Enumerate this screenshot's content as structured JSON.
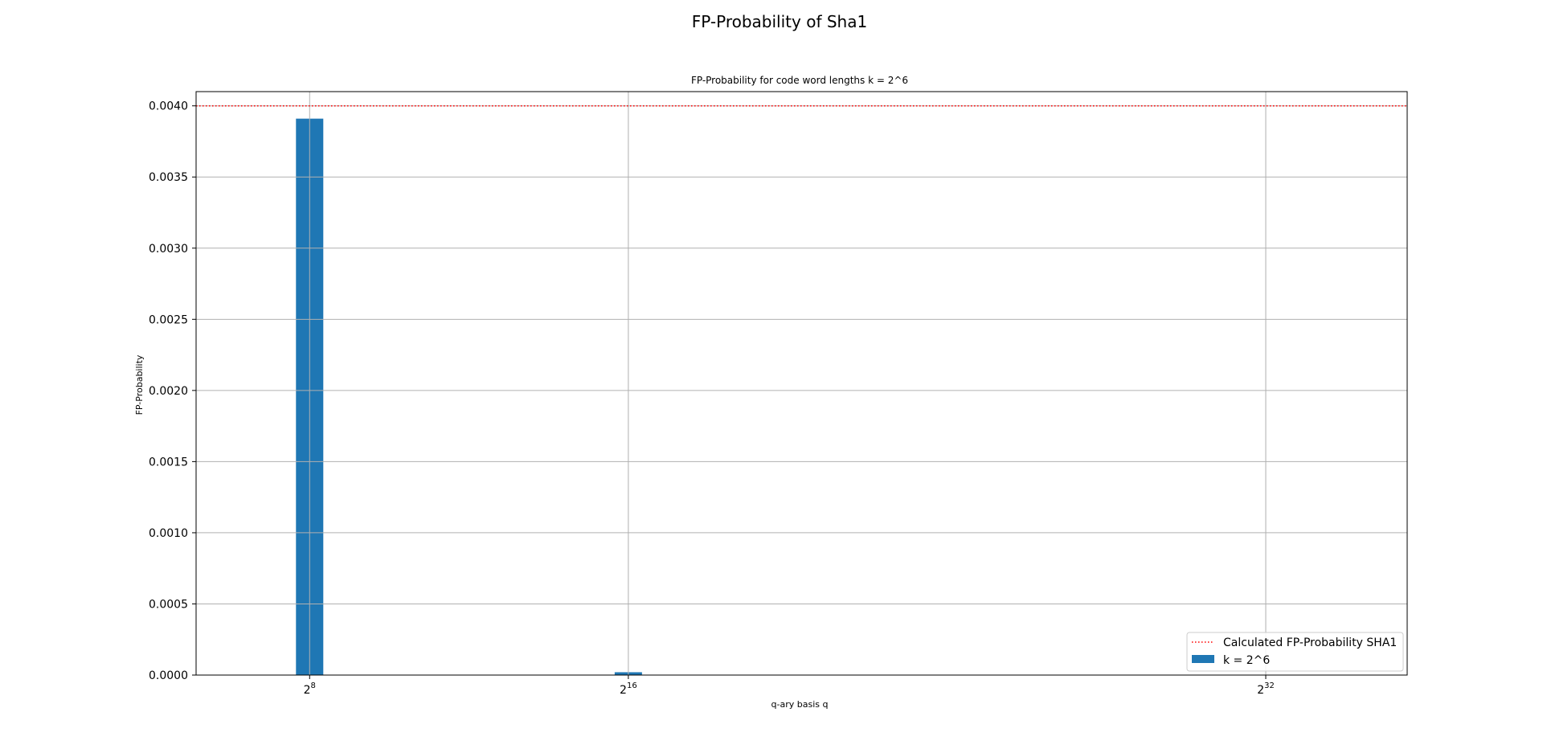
{
  "figure": {
    "suptitle": "FP-Probability of Sha1"
  },
  "chart_data": {
    "type": "bar",
    "title": "FP-Probability for code word lengths k = 2^6",
    "xlabel": "q-ary basis q",
    "ylabel": "FP-Probability",
    "x_scale": "log2",
    "x_ticks": [
      {
        "base": "2",
        "exp": "8",
        "value_log2": 8
      },
      {
        "base": "2",
        "exp": "16",
        "value_log2": 16
      },
      {
        "base": "2",
        "exp": "32",
        "value_log2": 32
      }
    ],
    "y_ticks": [
      "0.0000",
      "0.0005",
      "0.0010",
      "0.0015",
      "0.0020",
      "0.0025",
      "0.0030",
      "0.0035",
      "0.0040"
    ],
    "ylim": [
      0,
      0.0041
    ],
    "xlim_log2": [
      5.15,
      35.55
    ],
    "grid": true,
    "series": [
      {
        "name": "k = 2^6",
        "color": "#1f77b4",
        "x_log2": [
          8,
          16,
          32
        ],
        "values": [
          0.00391,
          2e-05,
          0.0
        ]
      }
    ],
    "reference_line": {
      "name": "Calculated FP-Probability SHA1",
      "value": 0.004,
      "color": "#ff0000",
      "style": "dotted"
    },
    "legend": {
      "placement": "lower-right",
      "entries": [
        "Calculated FP-Probability SHA1",
        "k = 2^6"
      ]
    }
  }
}
